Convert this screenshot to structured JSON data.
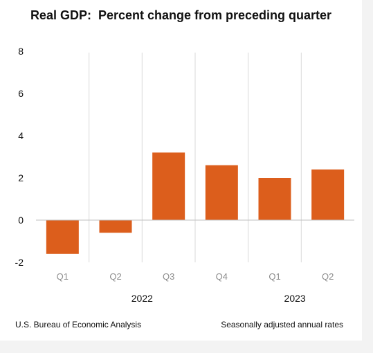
{
  "chart_title": "Real GDP:  Percent change from preceding quarter",
  "footer": {
    "source": "U.S. Bureau of Economic Analysis",
    "note": "Seasonally adjusted annual rates"
  },
  "colors": {
    "bar": "#dc5e1c",
    "background": "#ffffff",
    "grid": "#d9d9d9",
    "baseline": "#bfbfbf"
  },
  "chart_data": {
    "type": "bar",
    "title": "Real GDP:  Percent change from preceding quarter",
    "categories": [
      "Q1",
      "Q2",
      "Q3",
      "Q4",
      "Q1",
      "Q2"
    ],
    "groups": [
      {
        "label": "2022",
        "categories": [
          "Q1",
          "Q2",
          "Q3",
          "Q4"
        ]
      },
      {
        "label": "2023",
        "categories": [
          "Q1",
          "Q2"
        ]
      }
    ],
    "values": [
      -1.6,
      -0.6,
      3.2,
      2.6,
      2.0,
      2.4
    ],
    "xlabel": "",
    "ylabel": "",
    "ylim": [
      -2,
      8
    ],
    "yticks": [
      "-2",
      "0",
      "2",
      "4",
      "6",
      "8"
    ],
    "grid": "vertical separators between quarters",
    "legend": "none"
  }
}
